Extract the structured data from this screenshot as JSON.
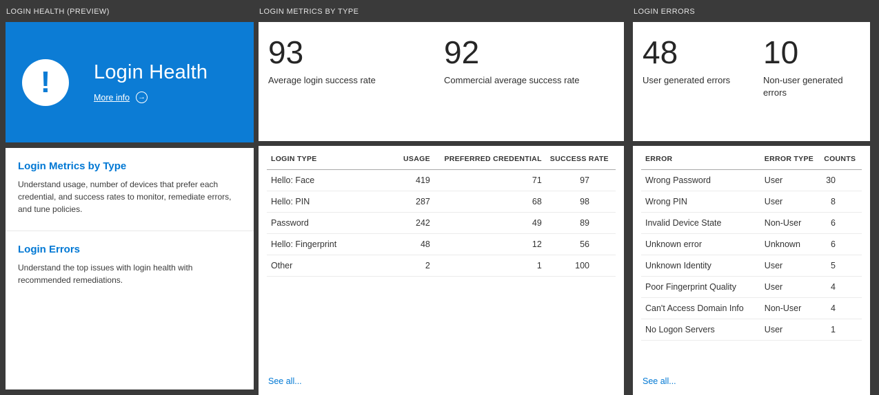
{
  "colors": {
    "background": "#3a3a3a",
    "tile_blue": "#0c7cd5",
    "accent_blue": "#0078d4"
  },
  "icons": {
    "exclamation": "!",
    "arrow_right": "→"
  },
  "columns": {
    "login_health": {
      "header": "LOGIN HEALTH (PREVIEW)",
      "hero": {
        "title": "Login Health",
        "more_info_label": "More info"
      },
      "sections": [
        {
          "title": "Login Metrics by Type",
          "description": "Understand usage, number of devices that prefer each credential, and success rates to monitor, remediate errors, and tune policies."
        },
        {
          "title": "Login Errors",
          "description": "Understand the top issues with login health with recommended remediations."
        }
      ]
    },
    "login_metrics": {
      "header": "LOGIN METRICS BY TYPE",
      "stats": [
        {
          "value": "93",
          "label": "Average login success rate"
        },
        {
          "value": "92",
          "label": "Commercial average success rate"
        }
      ],
      "table": {
        "headers": [
          "LOGIN TYPE",
          "USAGE",
          "PREFERRED CREDENTIAL",
          "SUCCESS RATE"
        ],
        "rows": [
          [
            "Hello: Face",
            "419",
            "71",
            "97"
          ],
          [
            "Hello: PIN",
            "287",
            "68",
            "98"
          ],
          [
            "Password",
            "242",
            "49",
            "89"
          ],
          [
            "Hello: Fingerprint",
            "48",
            "12",
            "56"
          ],
          [
            "Other",
            "2",
            "1",
            "100"
          ]
        ]
      },
      "see_all": "See all..."
    },
    "login_errors": {
      "header": "LOGIN ERRORS",
      "stats": [
        {
          "value": "48",
          "label": "User generated errors"
        },
        {
          "value": "10",
          "label": "Non-user generated errors"
        }
      ],
      "table": {
        "headers": [
          "ERROR",
          "ERROR TYPE",
          "COUNTS"
        ],
        "rows": [
          [
            "Wrong Password",
            "User",
            "30"
          ],
          [
            "Wrong PIN",
            "User",
            "8"
          ],
          [
            "Invalid Device State",
            "Non-User",
            "6"
          ],
          [
            "Unknown error",
            "Unknown",
            "6"
          ],
          [
            "Unknown Identity",
            "User",
            "5"
          ],
          [
            "Poor Fingerprint Quality",
            "User",
            "4"
          ],
          [
            "Can't Access Domain Info",
            "Non-User",
            "4"
          ],
          [
            "No Logon Servers",
            "User",
            "1"
          ]
        ]
      },
      "see_all": "See all..."
    }
  }
}
